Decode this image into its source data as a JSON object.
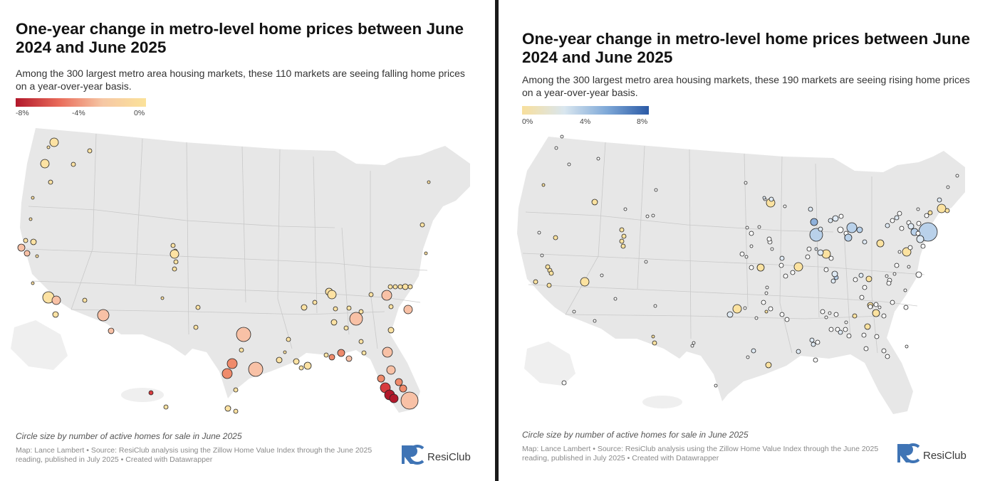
{
  "left": {
    "title": "One-year change in metro-level home prices between June 2024 and June 2025",
    "subtitle": "Among the 300 largest metro area housing markets, these 110 markets are seeing falling home prices on a year-over-year basis.",
    "legend": {
      "ticks": [
        "-8%",
        "-4%",
        "0%"
      ],
      "colors": [
        "#b2182b",
        "#e96b5a",
        "#f6c7a4",
        "#fbe29a"
      ]
    },
    "note": "Circle size by number of active homes for sale in June 2025",
    "credit": "Map: Lance Lambert • Source: ResiClub analysis using the Zillow Home Value Index through the June 2025 reading, published in July 2025 • Created with Datawrapper",
    "logo_text": "ResiClub"
  },
  "right": {
    "title": "One-year change in metro-level home prices between June 2024 and June 2025",
    "subtitle": "Among the 300 largest metro area housing markets, these 190 markets are seeing rising home prices on a year-over-year basis.",
    "legend": {
      "ticks": [
        "0%",
        "4%",
        "8%"
      ],
      "colors": [
        "#f8df9c",
        "#d9e6ef",
        "#7fa9d8",
        "#2b5aa6"
      ]
    },
    "note": "Circle size by number of active homes for sale in June 2025",
    "credit": "Map: Lance Lambert • Source: ResiClub analysis using the Zillow Home Value Index through the June 2025 reading, published in July 2025 • Created with Datawrapper",
    "logo_text": "ResiClub"
  },
  "colors": {
    "map_fill": "#e7e7e7",
    "state_border": "#c9c9c9",
    "logo_blue": "#3f74b5"
  }
}
